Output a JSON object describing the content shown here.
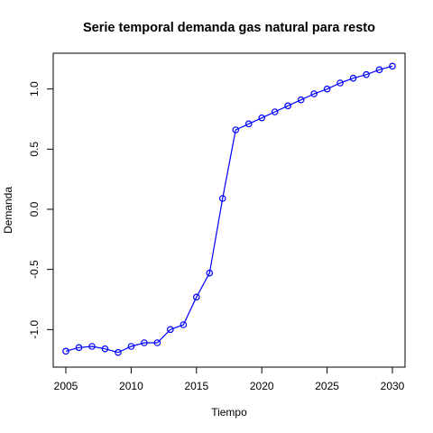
{
  "chart_data": {
    "type": "line",
    "title": "Serie temporal demanda gas natural para resto",
    "xlabel": "Tiempo",
    "ylabel": "Demanda",
    "xlim": [
      2005,
      2030
    ],
    "ylim": [
      -1.2,
      1.2
    ],
    "x_ticks": [
      2005,
      2010,
      2015,
      2020,
      2025,
      2030
    ],
    "y_ticks": [
      -1.0,
      -0.5,
      0.0,
      0.5,
      1.0
    ],
    "x_tick_labels": [
      "2005",
      "2010",
      "2015",
      "2020",
      "2025",
      "2030"
    ],
    "y_tick_labels": [
      "-1.0",
      "-0.5",
      "0.0",
      "0.5",
      "1.0"
    ],
    "series": [
      {
        "color": "#0000ff",
        "marker": "open-circle",
        "x": [
          2005,
          2006,
          2007,
          2008,
          2009,
          2010,
          2011,
          2012,
          2013,
          2014,
          2015,
          2016,
          2017,
          2018,
          2019,
          2020,
          2021,
          2022,
          2023,
          2024,
          2025,
          2026,
          2027,
          2028,
          2029,
          2030
        ],
        "values": [
          -1.18,
          -1.15,
          -1.14,
          -1.16,
          -1.19,
          -1.14,
          -1.11,
          -1.11,
          -1.0,
          -0.96,
          -0.73,
          -0.53,
          0.09,
          0.66,
          0.71,
          0.76,
          0.81,
          0.86,
          0.91,
          0.96,
          1.0,
          1.05,
          1.09,
          1.12,
          1.16,
          1.19
        ]
      }
    ],
    "grid": false,
    "legend": "none"
  }
}
